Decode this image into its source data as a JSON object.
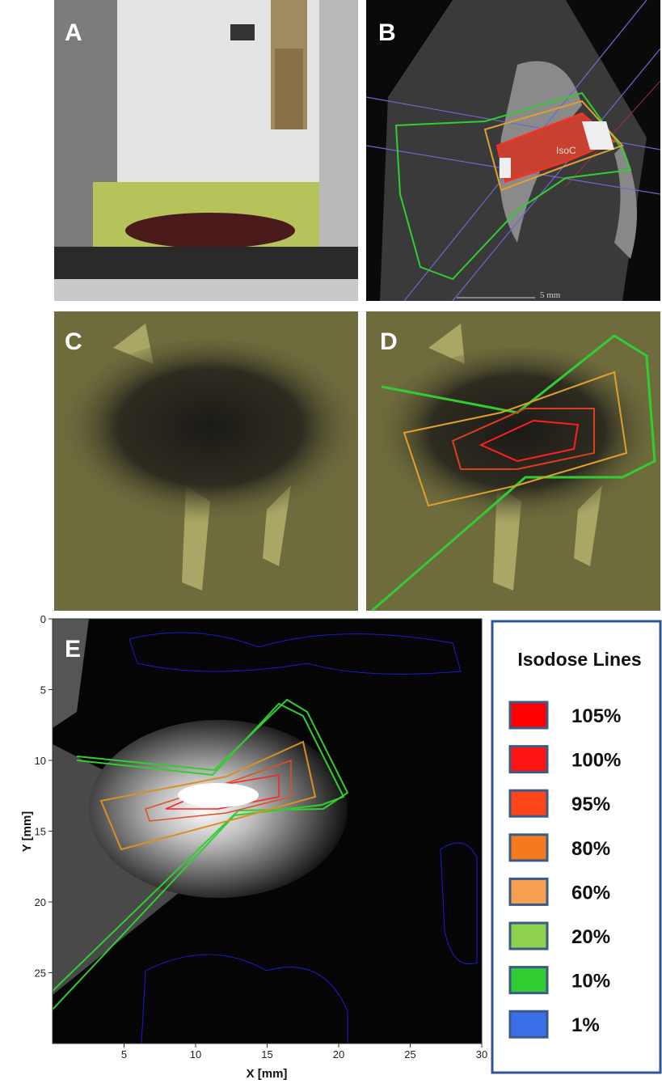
{
  "panels": {
    "a": "A",
    "b": "B",
    "c": "C",
    "d": "D",
    "e": "E"
  },
  "annotations": {
    "isocenter": "IsoC",
    "scale_bar": "5 mm"
  },
  "plot_e": {
    "x_label": "X [mm]",
    "y_label": "Y [mm]",
    "xlim": [
      0,
      30
    ],
    "ylim": [
      0,
      30
    ],
    "xticks": [
      5,
      10,
      15,
      20,
      25,
      30
    ],
    "yticks": [
      0,
      5,
      10,
      15,
      20,
      25
    ]
  },
  "legend": {
    "title": "Isodose Lines",
    "items": [
      {
        "label": "105%",
        "color": "#ff0000"
      },
      {
        "label": "100%",
        "color": "#ff1414"
      },
      {
        "label": "95%",
        "color": "#ff4418"
      },
      {
        "label": "80%",
        "color": "#f57a1e"
      },
      {
        "label": "60%",
        "color": "#f5a04e"
      },
      {
        "label": "20%",
        "color": "#8fd24f"
      },
      {
        "label": "10%",
        "color": "#33cc33"
      },
      {
        "label": "1%",
        "color": "#3a6fe8"
      }
    ]
  }
}
